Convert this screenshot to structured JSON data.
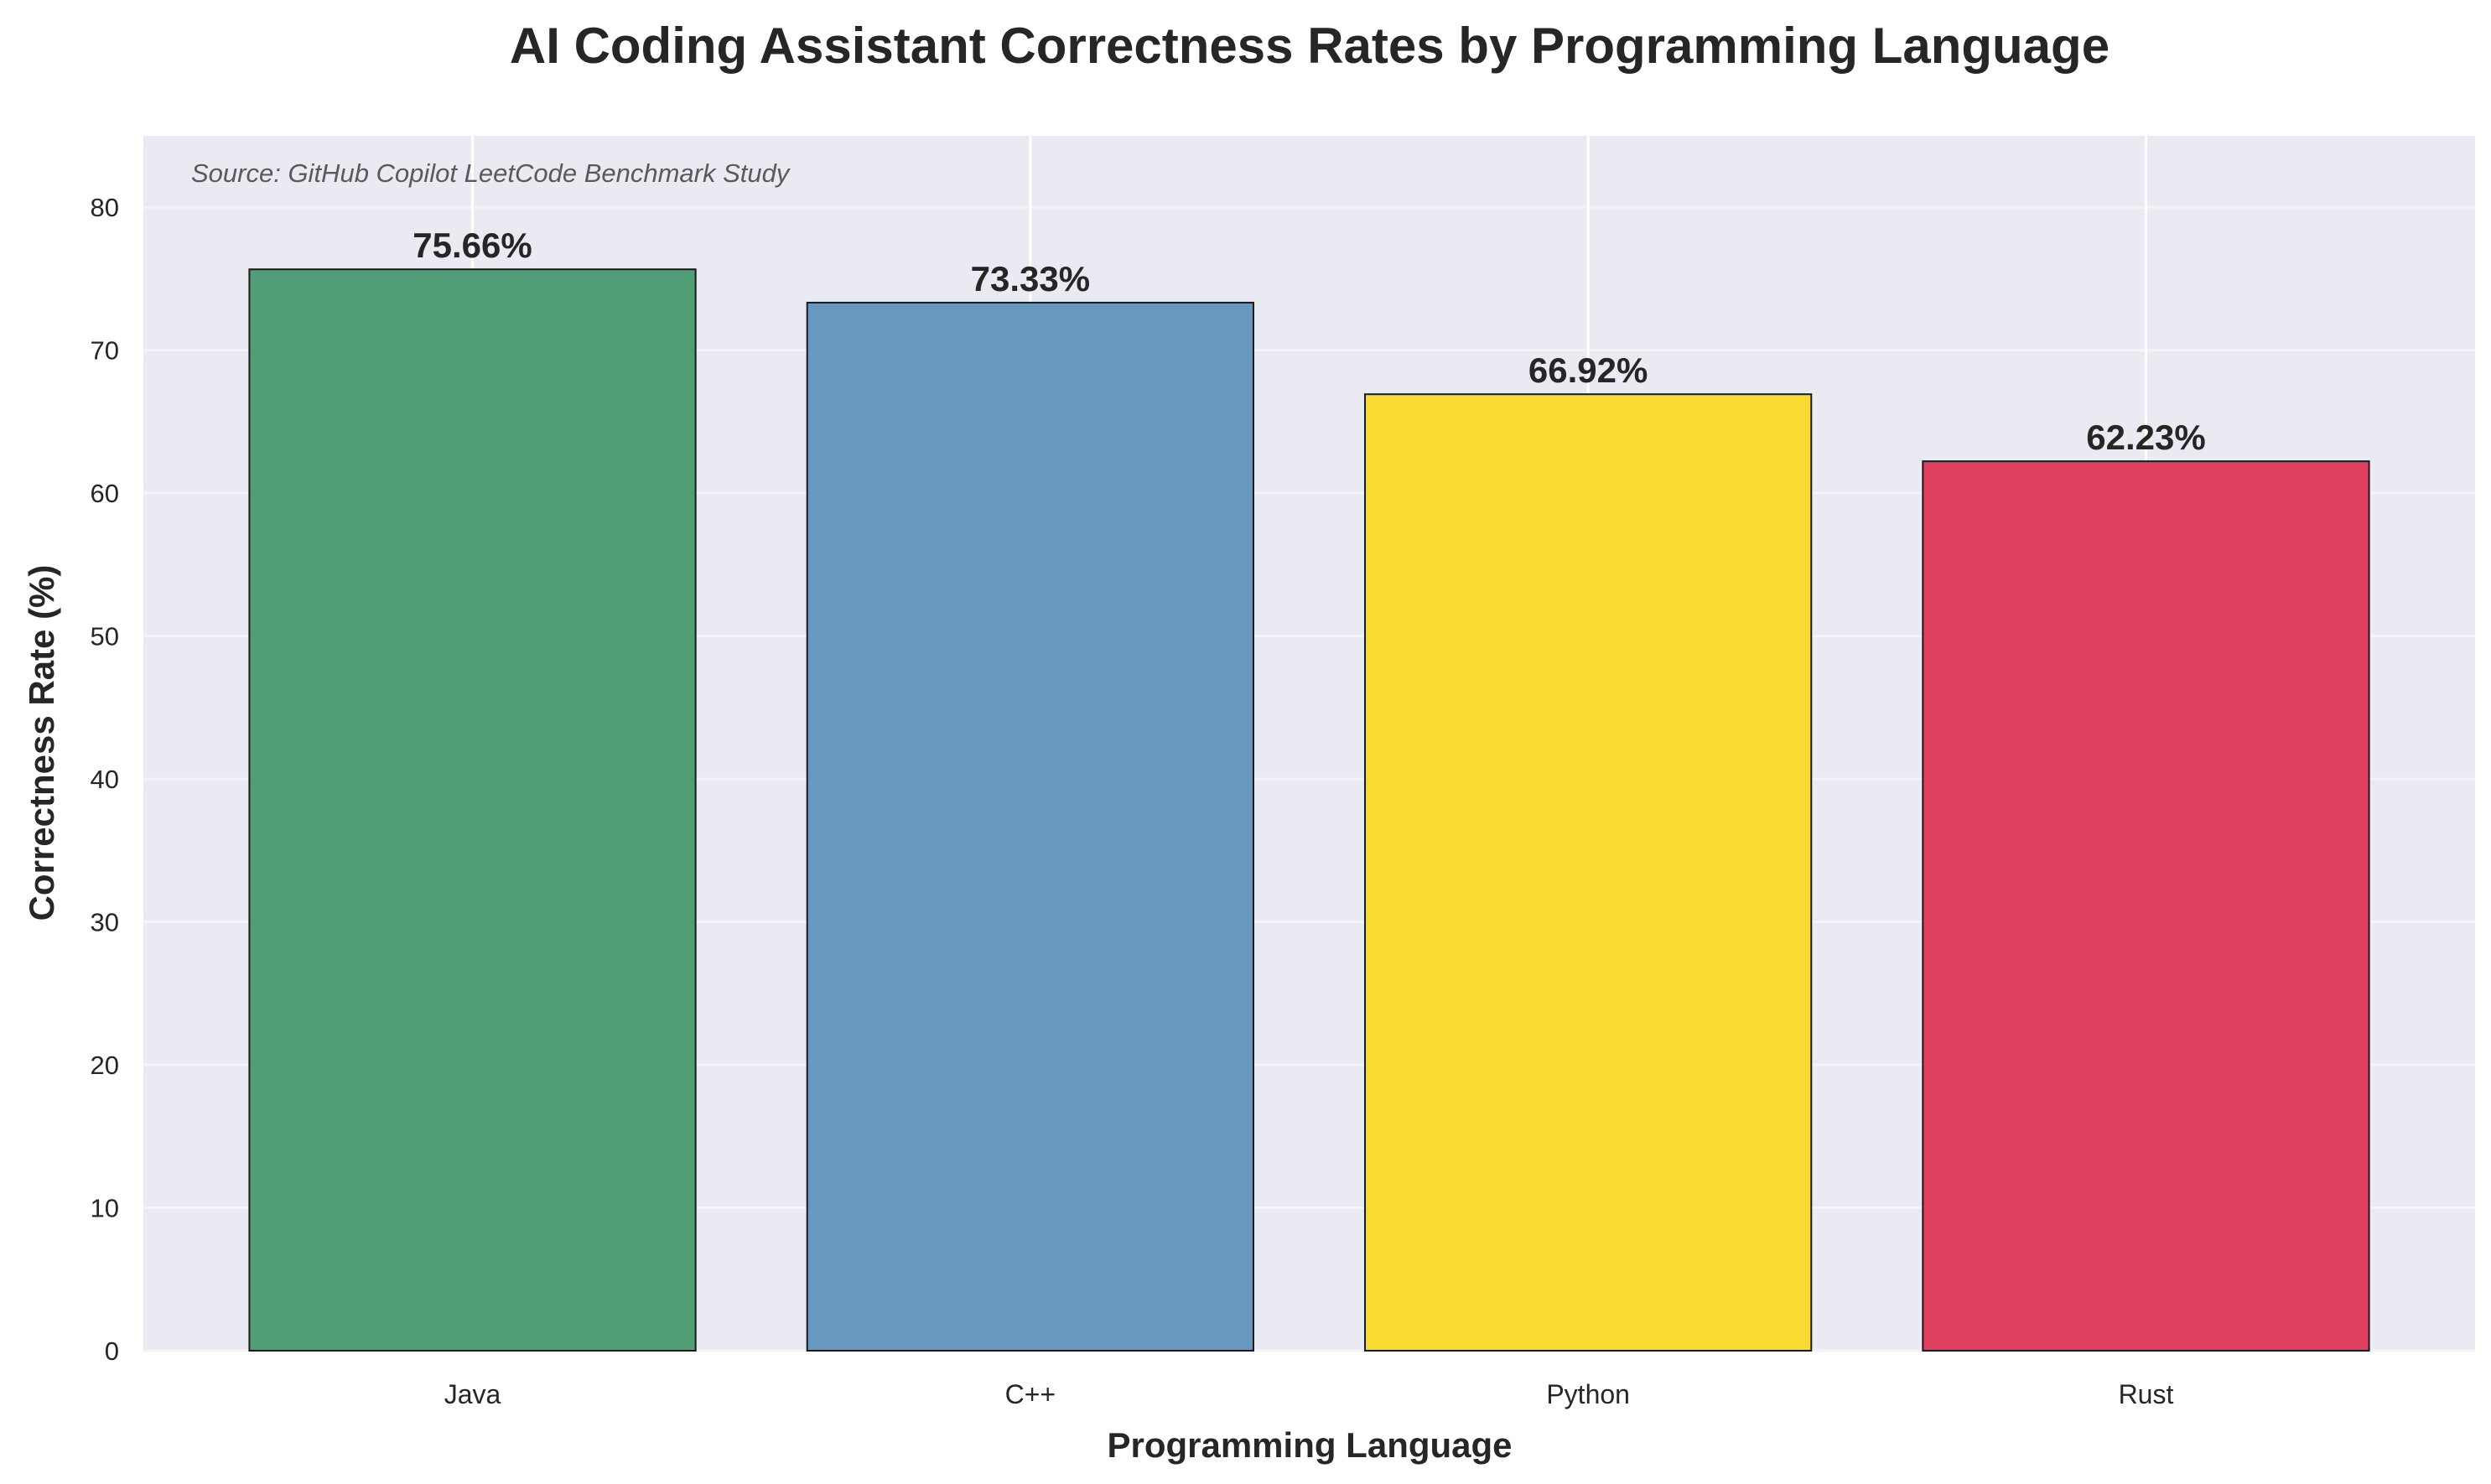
{
  "chart_data": {
    "type": "bar",
    "title": "AI Coding Assistant Correctness Rates by Programming Language",
    "xlabel": "Programming Language",
    "ylabel": "Correctness Rate (%)",
    "annotation": "Source: GitHub Copilot LeetCode Benchmark Study",
    "categories": [
      "Java",
      "C++",
      "Python",
      "Rust"
    ],
    "values": [
      75.66,
      73.33,
      66.92,
      62.23
    ],
    "value_labels": [
      "75.66%",
      "73.33%",
      "66.92%",
      "62.23%"
    ],
    "colors": [
      "#529e76",
      "#6897c0",
      "#f9da33",
      "#df405f"
    ],
    "ylim": [
      0,
      85
    ],
    "xlim": [
      -0.59,
      3.59
    ],
    "yticks": [
      0,
      10,
      20,
      30,
      40,
      50,
      60,
      70,
      80
    ],
    "grid": true,
    "background": "#eaeaf2"
  }
}
